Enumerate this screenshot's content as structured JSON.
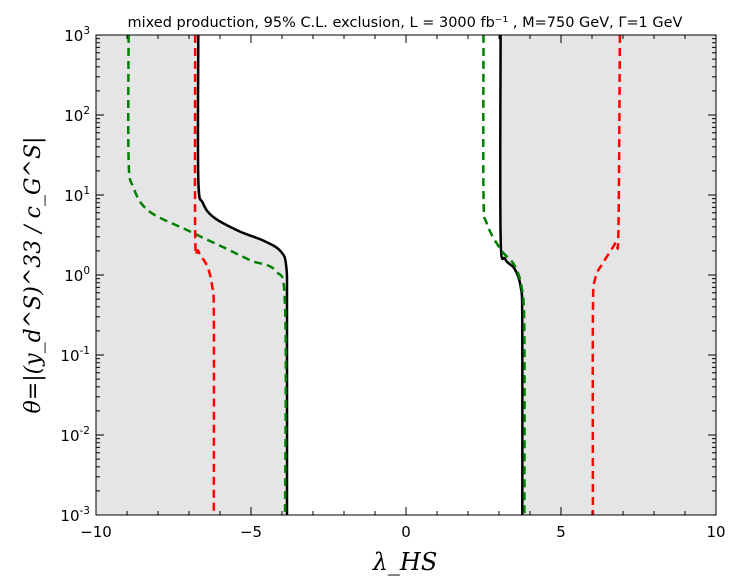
{
  "chart_data": {
    "type": "line",
    "title": "mixed production, 95% C.L. exclusion, L = 3000 fb⁻¹ , M=750 GeV, Γ=1 GeV",
    "xlabel": "λ_HS",
    "ylabel": "θ=|(y_d^S)^33 / c_G^S|",
    "xlim": [
      -10,
      10
    ],
    "ylim_log10": [
      -3,
      3
    ],
    "yscale": "log",
    "grid": false,
    "x_ticks": [
      {
        "value": -10,
        "label": "−10"
      },
      {
        "value": -5,
        "label": "−5"
      },
      {
        "value": 0,
        "label": "0"
      },
      {
        "value": 5,
        "label": "5"
      },
      {
        "value": 10,
        "label": "10"
      }
    ],
    "y_ticks": [
      {
        "exp": -3,
        "base": "10",
        "sup": "-3"
      },
      {
        "exp": -2,
        "base": "10",
        "sup": "-2"
      },
      {
        "exp": -1,
        "base": "10",
        "sup": "-1"
      },
      {
        "exp": 0,
        "base": "10",
        "sup": "0"
      },
      {
        "exp": 1,
        "base": "10",
        "sup": "1"
      },
      {
        "exp": 2,
        "base": "10",
        "sup": "2"
      },
      {
        "exp": 3,
        "base": "10",
        "sup": "3"
      }
    ],
    "shaded_color": "#e5e5e5",
    "shaded_regions": [
      {
        "name": "left-excluded",
        "points": [
          [
            -6.7,
            3.0
          ],
          [
            -6.7,
            1.2
          ],
          [
            -6.55,
            0.9
          ],
          [
            -6.2,
            0.72
          ],
          [
            -5.4,
            0.55
          ],
          [
            -4.6,
            0.43
          ],
          [
            -4.05,
            0.3
          ],
          [
            -3.86,
            0.1
          ],
          [
            -3.84,
            -0.5
          ],
          [
            -3.84,
            -3.0
          ]
        ]
      },
      {
        "name": "right-excluded",
        "points": [
          [
            3.05,
            3.0
          ],
          [
            3.05,
            0.5
          ],
          [
            3.2,
            0.2
          ],
          [
            3.5,
            0.08
          ],
          [
            3.7,
            -0.15
          ],
          [
            3.75,
            -0.6
          ],
          [
            3.75,
            -3.0
          ]
        ]
      }
    ],
    "series": [
      {
        "name": "black-solid-left",
        "color": "#000000",
        "dash": "",
        "points": [
          [
            -6.7,
            3.0
          ],
          [
            -6.7,
            1.2
          ],
          [
            -6.55,
            0.9
          ],
          [
            -6.2,
            0.72
          ],
          [
            -5.4,
            0.55
          ],
          [
            -4.6,
            0.43
          ],
          [
            -4.05,
            0.3
          ],
          [
            -3.86,
            0.1
          ],
          [
            -3.84,
            -0.5
          ],
          [
            -3.84,
            -3.0
          ]
        ]
      },
      {
        "name": "black-solid-right",
        "color": "#000000",
        "dash": "",
        "points": [
          [
            3.05,
            3.0
          ],
          [
            3.05,
            0.5
          ],
          [
            3.2,
            0.2
          ],
          [
            3.5,
            0.08
          ],
          [
            3.7,
            -0.15
          ],
          [
            3.75,
            -0.6
          ],
          [
            3.75,
            -3.0
          ]
        ]
      },
      {
        "name": "green-dashed-left",
        "color": "#008000",
        "dash": "8,5",
        "points": [
          [
            -8.95,
            3.0
          ],
          [
            -8.95,
            1.45
          ],
          [
            -8.8,
            1.1
          ],
          [
            -8.3,
            0.8
          ],
          [
            -7.0,
            0.55
          ],
          [
            -5.8,
            0.33
          ],
          [
            -5.0,
            0.18
          ],
          [
            -4.2,
            0.05
          ],
          [
            -3.9,
            -0.4
          ],
          [
            -3.9,
            -3.0
          ]
        ]
      },
      {
        "name": "green-dashed-right",
        "color": "#008000",
        "dash": "8,5",
        "points": [
          [
            2.5,
            3.0
          ],
          [
            2.5,
            1.0
          ],
          [
            2.6,
            0.65
          ],
          [
            3.05,
            0.32
          ],
          [
            3.5,
            0.12
          ],
          [
            3.75,
            -0.2
          ],
          [
            3.82,
            -0.8
          ],
          [
            3.82,
            -3.0
          ]
        ]
      },
      {
        "name": "red-dashed-left",
        "color": "#ff0000",
        "dash": "8,5",
        "points": [
          [
            -6.8,
            3.0
          ],
          [
            -6.8,
            0.5
          ],
          [
            -6.7,
            0.3
          ],
          [
            -6.4,
            0.1
          ],
          [
            -6.25,
            -0.15
          ],
          [
            -6.2,
            -0.5
          ],
          [
            -6.2,
            -3.0
          ]
        ]
      },
      {
        "name": "red-dashed-right",
        "color": "#ff0000",
        "dash": "8,5",
        "points": [
          [
            6.9,
            3.0
          ],
          [
            6.85,
            0.55
          ],
          [
            6.75,
            0.4
          ],
          [
            6.35,
            0.15
          ],
          [
            6.1,
            -0.05
          ],
          [
            6.03,
            -0.5
          ],
          [
            6.03,
            -3.0
          ]
        ]
      }
    ]
  }
}
